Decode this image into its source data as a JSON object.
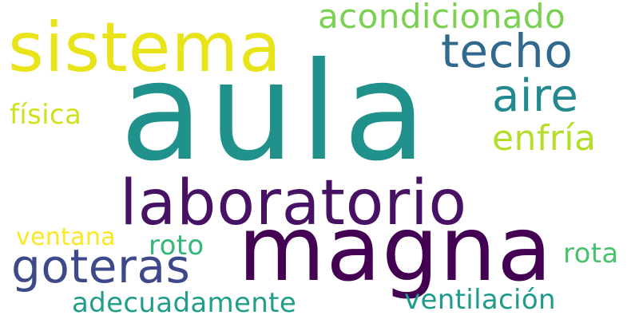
{
  "word_cloud": {
    "words": {
      "aula": {
        "text": "aula",
        "color": "#21918c"
      },
      "sistema": {
        "text": "sistema",
        "color": "#e8e419"
      },
      "magna": {
        "text": "magna",
        "color": "#440154"
      },
      "laboratorio": {
        "text": "laboratorio",
        "color": "#471164"
      },
      "goteras": {
        "text": "goteras",
        "color": "#3e4989"
      },
      "techo": {
        "text": "techo",
        "color": "#31688e"
      },
      "aire": {
        "text": "aire",
        "color": "#23898e"
      },
      "acondicionado": {
        "text": "acondicionado",
        "color": "#7ad151"
      },
      "enfria": {
        "text": "enfría",
        "color": "#b5de2b"
      },
      "fisica": {
        "text": "física",
        "color": "#d0e11c"
      },
      "ventana": {
        "text": "ventana",
        "color": "#fde725"
      },
      "roto": {
        "text": "roto",
        "color": "#35b779"
      },
      "rota": {
        "text": "rota",
        "color": "#4ac16d"
      },
      "adecuadamente": {
        "text": "adecuadamente",
        "color": "#1f9e89"
      },
      "ventilacion": {
        "text": "ventilación",
        "color": "#1e9b8a"
      }
    }
  }
}
